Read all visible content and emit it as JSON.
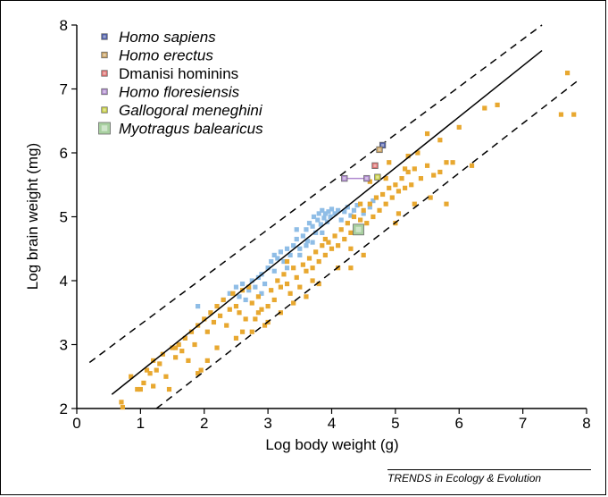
{
  "chart_data": {
    "type": "scatter",
    "xlabel": "Log body weight (g)",
    "ylabel": "Log brain weight (mg)",
    "xlim": [
      0,
      8
    ],
    "ylim": [
      2,
      8
    ],
    "xticks": [
      "0",
      "1",
      "2",
      "3",
      "4",
      "5",
      "6",
      "7",
      "8"
    ],
    "yticks": [
      "2",
      "3",
      "4",
      "5",
      "6",
      "7",
      "8"
    ],
    "grid": false,
    "legend_placement": "top-left",
    "regression_line": {
      "x": [
        0.55,
        7.3
      ],
      "y": [
        2.22,
        7.6
      ]
    },
    "confidence_upper": {
      "x": [
        0.2,
        7.3
      ],
      "y": [
        2.72,
        8.0
      ]
    },
    "confidence_lower": {
      "x": [
        1.25,
        7.85
      ],
      "y": [
        2.0,
        7.12
      ]
    },
    "series": [
      {
        "name": "Homo sapiens",
        "color": "#4a5aa8",
        "points": [
          [
            4.8,
            6.12
          ]
        ]
      },
      {
        "name": "Homo erectus",
        "color": "#c8a060",
        "points": [
          [
            4.75,
            6.05
          ]
        ]
      },
      {
        "name": "Dmanisi hominins",
        "color": "#e07070",
        "points": [
          [
            4.68,
            5.8
          ]
        ]
      },
      {
        "name": "Homo floresiensis",
        "color": "#b08ad0",
        "points": [
          [
            4.2,
            5.6
          ],
          [
            4.55,
            5.6
          ]
        ]
      },
      {
        "name": "Gallogoral meneghini",
        "color": "#c8d040",
        "points": [
          [
            4.72,
            5.62
          ]
        ]
      },
      {
        "name": "Myotragus balearicus",
        "color": "#a8d0a0",
        "points": [
          [
            4.42,
            4.8
          ]
        ]
      },
      {
        "name": "",
        "color": "#8fbde6",
        "points": [
          [
            1.9,
            3.6
          ],
          [
            2.3,
            3.7
          ],
          [
            2.4,
            3.8
          ],
          [
            2.5,
            3.9
          ],
          [
            2.55,
            3.75
          ],
          [
            2.6,
            3.95
          ],
          [
            2.65,
            3.7
          ],
          [
            2.7,
            3.85
          ],
          [
            2.75,
            4.0
          ],
          [
            2.8,
            3.9
          ],
          [
            2.85,
            4.05
          ],
          [
            2.9,
            4.1
          ],
          [
            2.95,
            3.95
          ],
          [
            3.0,
            4.2
          ],
          [
            3.05,
            4.3
          ],
          [
            3.1,
            4.15
          ],
          [
            3.15,
            4.35
          ],
          [
            3.2,
            4.45
          ],
          [
            3.25,
            4.3
          ],
          [
            3.3,
            4.5
          ],
          [
            3.35,
            4.4
          ],
          [
            3.4,
            4.55
          ],
          [
            3.45,
            4.65
          ],
          [
            3.5,
            4.5
          ],
          [
            3.55,
            4.7
          ],
          [
            3.6,
            4.8
          ],
          [
            3.62,
            4.62
          ],
          [
            3.65,
            4.9
          ],
          [
            3.7,
            4.85
          ],
          [
            3.72,
            5.0
          ],
          [
            3.75,
            4.75
          ],
          [
            3.78,
            4.95
          ],
          [
            3.8,
            5.05
          ],
          [
            3.83,
            4.88
          ],
          [
            3.85,
            5.1
          ],
          [
            3.88,
            4.98
          ],
          [
            3.9,
            5.05
          ],
          [
            3.93,
            4.92
          ],
          [
            3.95,
            5.08
          ],
          [
            3.98,
            5.0
          ],
          [
            4.0,
            5.12
          ],
          [
            4.05,
            5.05
          ],
          [
            4.1,
            5.1
          ],
          [
            4.15,
            4.95
          ],
          [
            4.2,
            5.08
          ],
          [
            4.25,
            5.15
          ],
          [
            4.3,
            5.02
          ],
          [
            4.35,
            5.1
          ],
          [
            4.4,
            5.18
          ],
          [
            4.5,
            5.05
          ],
          [
            4.6,
            5.15
          ],
          [
            4.65,
            5.25
          ],
          [
            3.3,
            4.2
          ],
          [
            3.5,
            4.4
          ],
          [
            3.1,
            4.4
          ],
          [
            2.9,
            3.8
          ],
          [
            3.6,
            4.55
          ],
          [
            3.7,
            4.6
          ],
          [
            3.85,
            4.75
          ],
          [
            3.45,
            4.8
          ]
        ]
      },
      {
        "name": "",
        "color": "#e8a830",
        "points": [
          [
            0.7,
            2.1
          ],
          [
            0.72,
            2.02
          ],
          [
            0.85,
            2.5
          ],
          [
            1.0,
            2.3
          ],
          [
            1.05,
            2.4
          ],
          [
            1.1,
            2.6
          ],
          [
            1.15,
            2.55
          ],
          [
            1.2,
            2.75
          ],
          [
            1.25,
            2.6
          ],
          [
            1.3,
            2.7
          ],
          [
            1.35,
            2.85
          ],
          [
            1.4,
            2.5
          ],
          [
            1.45,
            2.3
          ],
          [
            1.5,
            2.95
          ],
          [
            1.55,
            2.8
          ],
          [
            1.6,
            3.0
          ],
          [
            1.65,
            2.9
          ],
          [
            1.7,
            3.1
          ],
          [
            1.75,
            2.75
          ],
          [
            1.8,
            3.2
          ],
          [
            1.85,
            3.0
          ],
          [
            1.9,
            3.3
          ],
          [
            1.95,
            2.6
          ],
          [
            2.0,
            3.4
          ],
          [
            2.05,
            3.2
          ],
          [
            2.1,
            3.5
          ],
          [
            2.15,
            3.35
          ],
          [
            2.2,
            3.6
          ],
          [
            2.25,
            3.45
          ],
          [
            2.3,
            3.7
          ],
          [
            2.35,
            3.3
          ],
          [
            2.4,
            3.55
          ],
          [
            2.45,
            3.8
          ],
          [
            2.5,
            3.6
          ],
          [
            2.55,
            3.5
          ],
          [
            2.6,
            3.85
          ],
          [
            2.65,
            3.4
          ],
          [
            2.7,
            3.9
          ],
          [
            2.75,
            3.65
          ],
          [
            2.8,
            3.4
          ],
          [
            2.85,
            3.75
          ],
          [
            2.9,
            3.55
          ],
          [
            2.95,
            3.3
          ],
          [
            3.0,
            3.6
          ],
          [
            3.05,
            3.85
          ],
          [
            3.1,
            3.7
          ],
          [
            3.15,
            4.0
          ],
          [
            3.2,
            3.9
          ],
          [
            3.25,
            4.1
          ],
          [
            3.3,
            3.95
          ],
          [
            3.35,
            3.8
          ],
          [
            3.4,
            4.2
          ],
          [
            3.45,
            4.05
          ],
          [
            3.5,
            3.9
          ],
          [
            3.55,
            4.25
          ],
          [
            3.6,
            4.15
          ],
          [
            3.65,
            4.35
          ],
          [
            3.7,
            4.2
          ],
          [
            3.75,
            4.45
          ],
          [
            3.8,
            4.3
          ],
          [
            3.85,
            4.55
          ],
          [
            3.9,
            4.4
          ],
          [
            3.95,
            4.6
          ],
          [
            4.0,
            4.5
          ],
          [
            4.05,
            4.7
          ],
          [
            4.1,
            4.55
          ],
          [
            4.15,
            4.8
          ],
          [
            4.2,
            4.65
          ],
          [
            4.25,
            4.9
          ],
          [
            4.3,
            4.75
          ],
          [
            4.35,
            5.0
          ],
          [
            4.4,
            4.85
          ],
          [
            4.45,
            4.95
          ],
          [
            4.5,
            5.1
          ],
          [
            4.55,
            4.9
          ],
          [
            4.6,
            5.2
          ],
          [
            4.65,
            5.0
          ],
          [
            4.7,
            5.3
          ],
          [
            4.75,
            5.1
          ],
          [
            4.8,
            5.35
          ],
          [
            4.85,
            5.2
          ],
          [
            4.9,
            5.45
          ],
          [
            4.95,
            5.3
          ],
          [
            5.0,
            5.5
          ],
          [
            5.05,
            5.4
          ],
          [
            5.1,
            5.6
          ],
          [
            5.15,
            5.45
          ],
          [
            5.2,
            5.7
          ],
          [
            5.25,
            5.5
          ],
          [
            5.3,
            5.75
          ],
          [
            5.4,
            5.6
          ],
          [
            5.5,
            5.8
          ],
          [
            5.55,
            5.3
          ],
          [
            5.6,
            5.65
          ],
          [
            5.7,
            5.7
          ],
          [
            5.8,
            5.85
          ],
          [
            5.9,
            5.85
          ],
          [
            6.0,
            6.4
          ],
          [
            6.2,
            5.8
          ],
          [
            6.4,
            6.7
          ],
          [
            6.6,
            6.75
          ],
          [
            7.6,
            6.6
          ],
          [
            7.7,
            7.25
          ],
          [
            7.8,
            6.6
          ],
          [
            3.2,
            3.5
          ],
          [
            3.4,
            3.65
          ],
          [
            3.0,
            3.35
          ],
          [
            2.5,
            3.1
          ],
          [
            2.2,
            2.95
          ],
          [
            1.9,
            2.55
          ],
          [
            2.75,
            3.2
          ],
          [
            3.6,
            3.75
          ],
          [
            4.5,
            4.4
          ],
          [
            5.0,
            4.9
          ],
          [
            5.3,
            5.2
          ],
          [
            4.1,
            4.2
          ],
          [
            3.8,
            3.95
          ],
          [
            4.3,
            4.5
          ],
          [
            5.2,
            5.95
          ],
          [
            5.5,
            6.3
          ],
          [
            5.7,
            6.2
          ],
          [
            4.9,
            5.85
          ],
          [
            4.6,
            5.55
          ],
          [
            2.6,
            3.2
          ],
          [
            1.55,
            2.95
          ],
          [
            2.05,
            2.75
          ],
          [
            1.2,
            2.35
          ],
          [
            0.95,
            2.3
          ],
          [
            5.8,
            5.2
          ],
          [
            5.05,
            5.05
          ],
          [
            4.3,
            4.2
          ],
          [
            3.9,
            4.65
          ],
          [
            3.3,
            4.3
          ],
          [
            2.85,
            3.5
          ],
          [
            3.7,
            4.0
          ],
          [
            4.45,
            5.2
          ],
          [
            4.85,
            5.6
          ],
          [
            5.15,
            5.75
          ],
          [
            5.35,
            6.0
          ]
        ]
      }
    ]
  },
  "footer": "TRENDS in Ecology & Evolution"
}
